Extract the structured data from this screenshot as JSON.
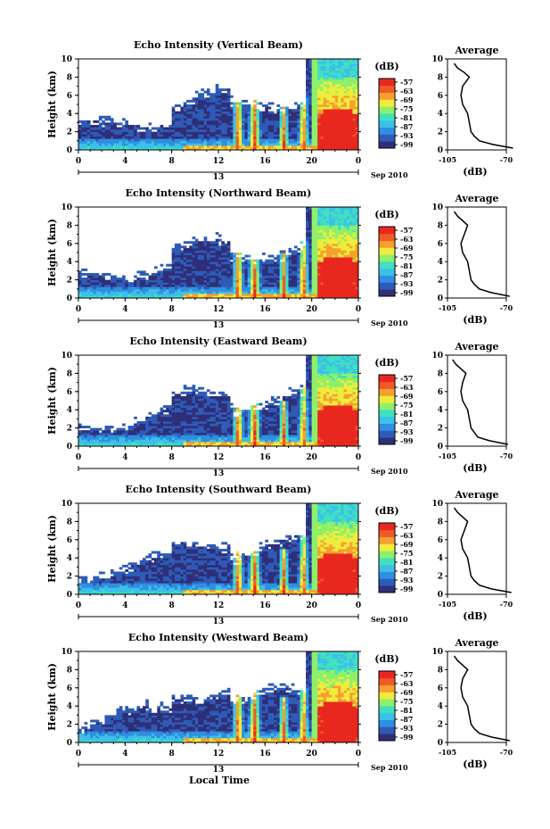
{
  "colors": {
    "scale": [
      "#2f2f78",
      "#2e5bb8",
      "#2f8fe0",
      "#3cc0e8",
      "#40e0c0",
      "#8ef06a",
      "#f0ec3c",
      "#f5a030",
      "#f05a28",
      "#e8281e"
    ],
    "background": "#ffffff",
    "axis": "#000000"
  },
  "common": {
    "ylabel": "Height (km)",
    "xticks": [
      "0",
      "4",
      "8",
      "12",
      "16",
      "20",
      "0"
    ],
    "yticks": [
      "0",
      "2",
      "4",
      "6",
      "8",
      "10"
    ],
    "date_label": "13",
    "month_label": "Sep 2010",
    "colorbar_unit": "(dB)",
    "colorbar_ticks": [
      "-57",
      "-63",
      "-69",
      "-75",
      "-81",
      "-87",
      "-93",
      "-99"
    ],
    "avg_title": "Average",
    "avg_xticks": [
      "-105",
      "-70"
    ],
    "avg_xlabel": "(dB)",
    "xlabel": "Local Time"
  },
  "chart_data": [
    {
      "type": "heatmap",
      "title": "Echo Intensity (Vertical Beam)",
      "xlabel": "Local Time",
      "ylabel": "Height (km)",
      "xlim": [
        0,
        24
      ],
      "ylim": [
        0,
        10
      ],
      "zlim": [
        -99,
        -57
      ],
      "average_profile": {
        "x": [
          -66,
          -78,
          -86,
          -89,
          -91,
          -92,
          -93,
          -96,
          -97,
          -96,
          -92,
          -95,
          -99,
          -101
        ],
        "y": [
          0.2,
          0.6,
          1,
          1.5,
          2,
          3,
          4,
          5,
          6,
          7,
          8,
          8.5,
          9,
          9.5
        ],
        "xlim": [
          -105,
          -70
        ],
        "ylim": [
          0,
          10
        ]
      }
    },
    {
      "type": "heatmap",
      "title": "Echo Intensity (Northward Beam)",
      "xlabel": "Local Time",
      "ylabel": "Height (km)",
      "xlim": [
        0,
        24
      ],
      "ylim": [
        0,
        10
      ],
      "zlim": [
        -99,
        -57
      ],
      "average_profile": {
        "x": [
          -68,
          -79,
          -86,
          -89,
          -91,
          -92,
          -93,
          -96,
          -97,
          -95,
          -93,
          -96,
          -99,
          -101
        ],
        "y": [
          0.2,
          0.6,
          1,
          1.5,
          2,
          3,
          4,
          5,
          6,
          7,
          8,
          8.5,
          9,
          9.5
        ],
        "xlim": [
          -105,
          -70
        ],
        "ylim": [
          0,
          10
        ]
      }
    },
    {
      "type": "heatmap",
      "title": "Echo Intensity (Eastward Beam)",
      "xlabel": "Local Time",
      "ylabel": "Height (km)",
      "xlim": [
        0,
        24
      ],
      "ylim": [
        0,
        10
      ],
      "zlim": [
        -99,
        -57
      ],
      "average_profile": {
        "x": [
          -69,
          -80,
          -87,
          -89,
          -91,
          -92,
          -93,
          -96,
          -97,
          -96,
          -94,
          -97,
          -100,
          -102
        ],
        "y": [
          0.2,
          0.6,
          1,
          1.5,
          2,
          3,
          4,
          5,
          6,
          7,
          8,
          8.5,
          9,
          9.5
        ],
        "xlim": [
          -105,
          -70
        ],
        "ylim": [
          0,
          10
        ]
      }
    },
    {
      "type": "heatmap",
      "title": "Echo Intensity (Southward Beam)",
      "xlabel": "Local Time",
      "ylabel": "Height (km)",
      "xlim": [
        0,
        24
      ],
      "ylim": [
        0,
        10
      ],
      "zlim": [
        -99,
        -57
      ],
      "average_profile": {
        "x": [
          -67,
          -79,
          -86,
          -89,
          -91,
          -92,
          -93,
          -96,
          -97,
          -95,
          -93,
          -96,
          -99,
          -101
        ],
        "y": [
          0.2,
          0.6,
          1,
          1.5,
          2,
          3,
          4,
          5,
          6,
          7,
          8,
          8.5,
          9,
          9.5
        ],
        "xlim": [
          -105,
          -70
        ],
        "ylim": [
          0,
          10
        ]
      }
    },
    {
      "type": "heatmap",
      "title": "Echo Intensity (Westward Beam)",
      "xlabel": "Local Time",
      "ylabel": "Height (km)",
      "xlim": [
        0,
        24
      ],
      "ylim": [
        0,
        10
      ],
      "zlim": [
        -99,
        -57
      ],
      "average_profile": {
        "x": [
          -68,
          -79,
          -86,
          -89,
          -91,
          -92,
          -93,
          -96,
          -97,
          -96,
          -93,
          -96,
          -99,
          -101
        ],
        "y": [
          0.2,
          0.6,
          1,
          1.5,
          2,
          3,
          4,
          5,
          6,
          7,
          8,
          8.5,
          9,
          9.5
        ],
        "xlim": [
          -105,
          -70
        ],
        "ylim": [
          0,
          10
        ]
      }
    }
  ]
}
